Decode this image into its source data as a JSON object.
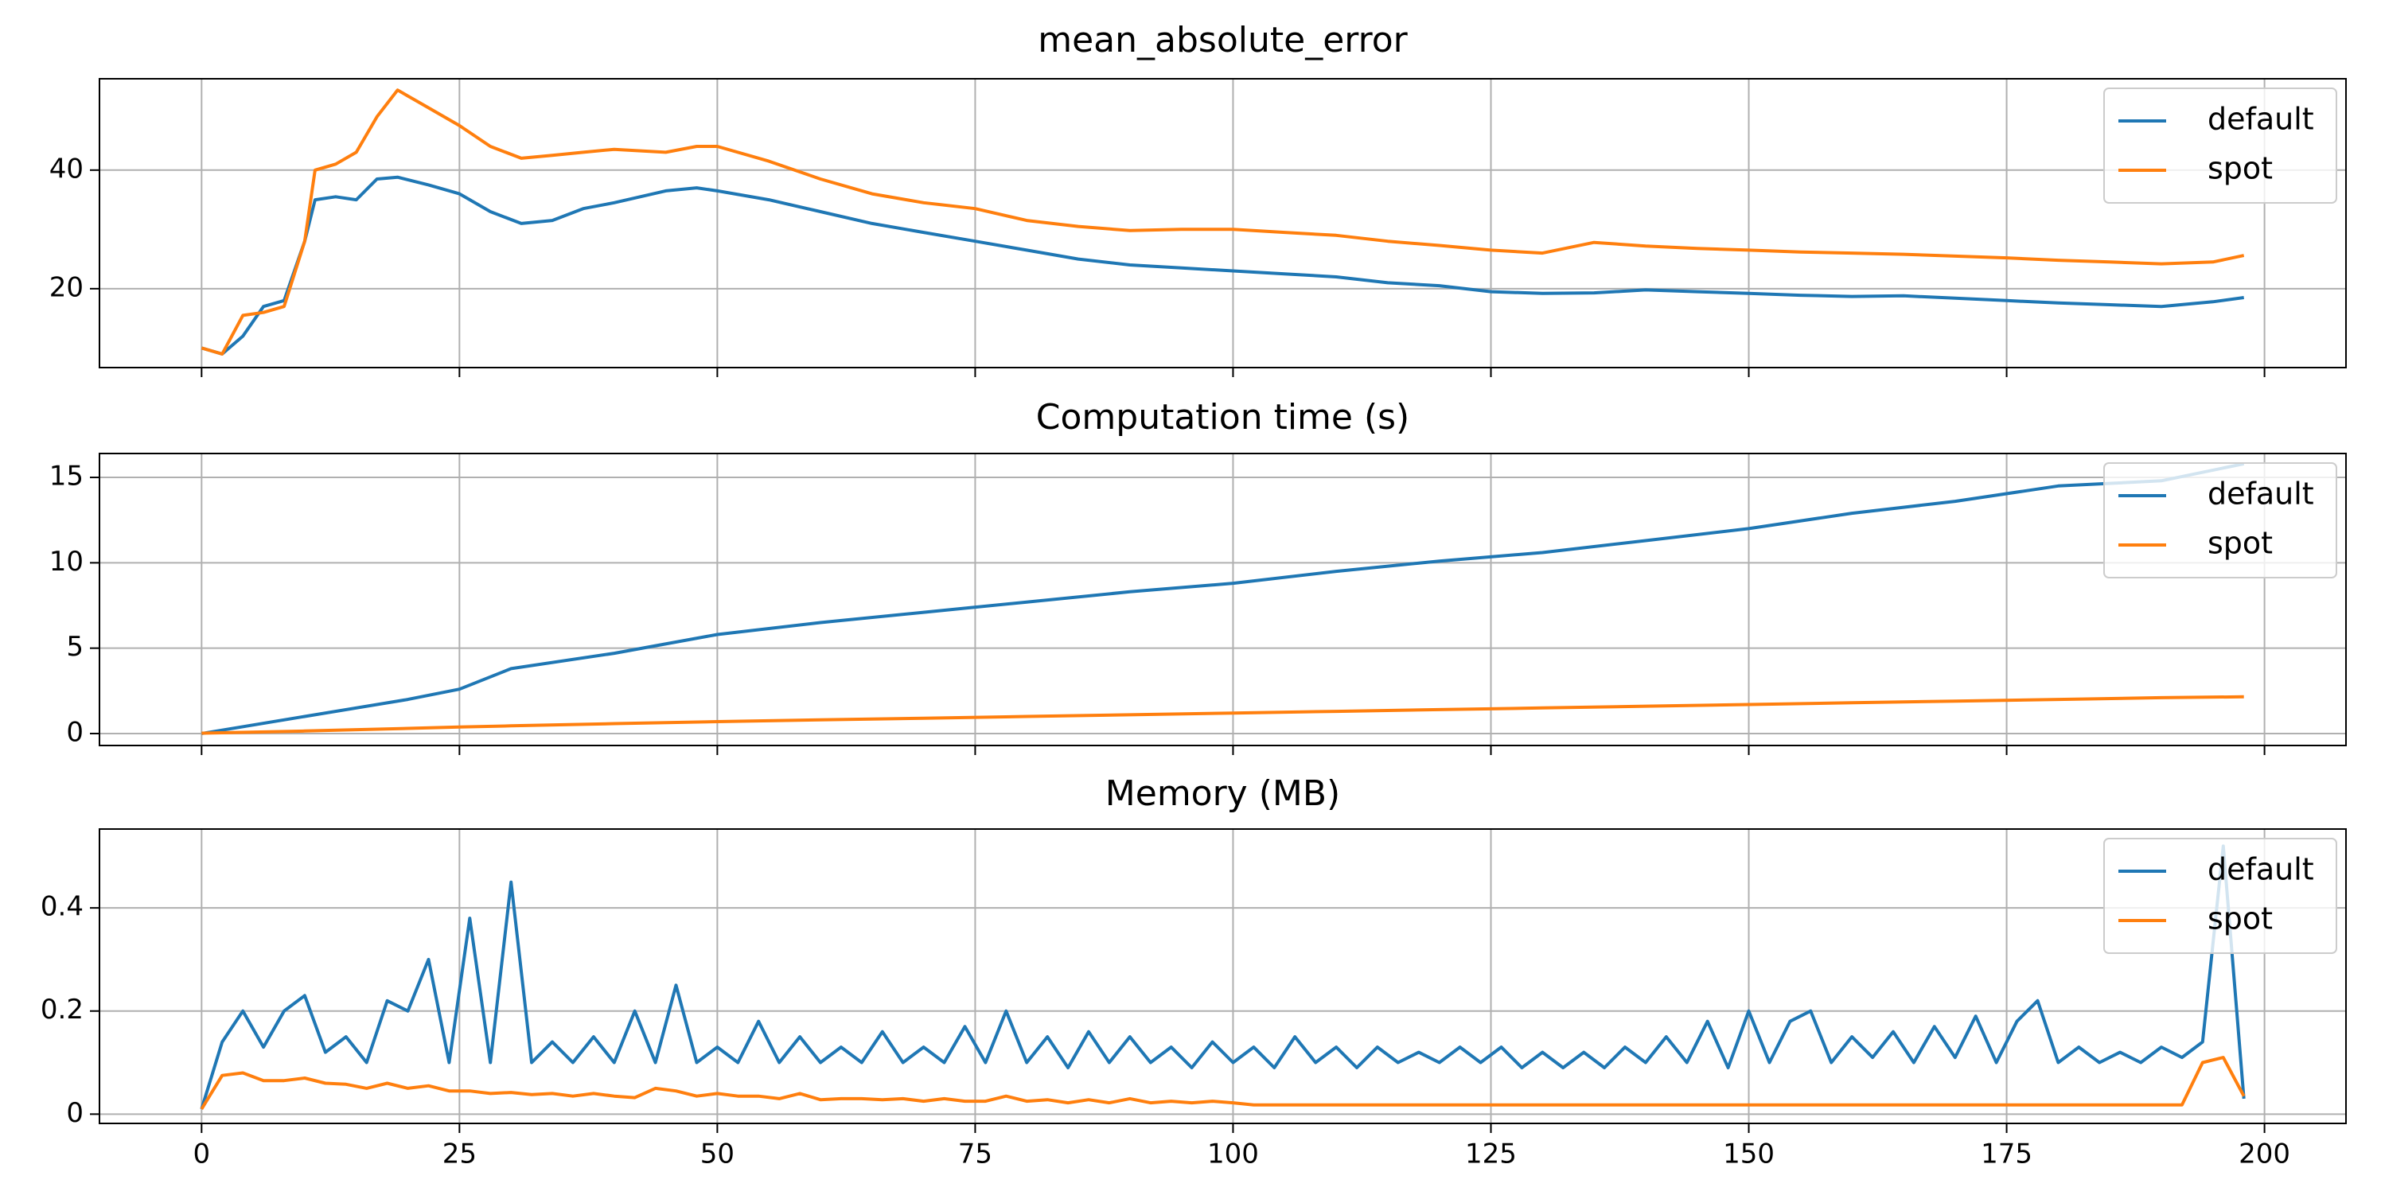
{
  "chart_data": [
    {
      "type": "line",
      "title": "mean_absolute_error",
      "legend": "upper right",
      "grid": true,
      "x": [
        0,
        2,
        4,
        6,
        8,
        10,
        11,
        13,
        15,
        17,
        19,
        22,
        25,
        28,
        31,
        34,
        37,
        40,
        45,
        48,
        50,
        55,
        60,
        65,
        70,
        75,
        80,
        85,
        90,
        95,
        100,
        105,
        110,
        115,
        120,
        125,
        130,
        135,
        140,
        145,
        150,
        155,
        160,
        165,
        170,
        175,
        180,
        185,
        190,
        195,
        198
      ],
      "series": [
        {
          "name": "default",
          "color": "#1f77b4",
          "values": [
            10,
            9,
            12,
            17,
            18,
            28,
            35,
            35.5,
            35,
            38.5,
            38.8,
            37.5,
            36,
            33,
            31,
            31.5,
            33.5,
            34.5,
            36.5,
            37,
            36.5,
            35,
            33,
            31,
            29.5,
            28,
            26.5,
            25,
            24,
            23.5,
            23,
            22.5,
            22,
            21,
            20.5,
            19.5,
            19.2,
            19.3,
            19.8,
            19.5,
            19.2,
            18.9,
            18.7,
            18.8,
            18.4,
            18,
            17.6,
            17.3,
            17,
            17.8,
            18.5
          ]
        },
        {
          "name": "spot",
          "color": "#ff7f0e",
          "values": [
            10,
            9,
            15.5,
            16,
            17,
            28,
            40,
            41,
            43,
            49,
            53.5,
            50.5,
            47.5,
            44,
            42,
            42.5,
            43,
            43.5,
            43,
            44,
            44,
            41.5,
            38.5,
            36,
            34.5,
            33.5,
            31.5,
            30.5,
            29.8,
            30,
            30,
            29.5,
            29,
            28,
            27.3,
            26.5,
            26,
            27.8,
            27.2,
            26.8,
            26.5,
            26.2,
            26,
            25.8,
            25.5,
            25.2,
            24.8,
            24.5,
            24.2,
            24.5,
            25.6
          ]
        }
      ],
      "xlim": [
        -9.9,
        207.9
      ],
      "xticks": [
        0,
        25,
        50,
        75,
        100,
        125,
        150,
        175,
        200
      ],
      "ylim": [
        6.7,
        55.4
      ],
      "yticks": [
        20,
        40
      ]
    },
    {
      "type": "line",
      "title": "Computation time (s)",
      "legend": "upper right",
      "grid": true,
      "x": [
        0,
        10,
        20,
        25,
        30,
        40,
        50,
        60,
        70,
        80,
        90,
        100,
        110,
        120,
        130,
        140,
        150,
        160,
        170,
        180,
        190,
        198
      ],
      "series": [
        {
          "name": "default",
          "color": "#1f77b4",
          "values": [
            0,
            1,
            2,
            2.6,
            3.8,
            4.7,
            5.8,
            6.5,
            7.1,
            7.7,
            8.3,
            8.8,
            9.5,
            10.1,
            10.6,
            11.3,
            12,
            12.9,
            13.6,
            14.5,
            14.8,
            15.8
          ]
        },
        {
          "name": "spot",
          "color": "#ff7f0e",
          "values": [
            0.02,
            0.15,
            0.3,
            0.38,
            0.45,
            0.58,
            0.7,
            0.8,
            0.9,
            1.0,
            1.1,
            1.2,
            1.3,
            1.4,
            1.5,
            1.6,
            1.7,
            1.8,
            1.9,
            2.0,
            2.1,
            2.15
          ]
        }
      ],
      "xlim": [
        -9.9,
        207.9
      ],
      "xticks": [
        0,
        25,
        50,
        75,
        100,
        125,
        150,
        175,
        200
      ],
      "ylim": [
        -0.7,
        16.4
      ],
      "yticks": [
        0,
        5,
        10,
        15
      ]
    },
    {
      "type": "line",
      "title": "Memory (MB)",
      "legend": "upper right",
      "grid": true,
      "x": [
        0,
        2,
        4,
        6,
        8,
        10,
        12,
        14,
        16,
        18,
        20,
        22,
        24,
        26,
        28,
        30,
        32,
        34,
        36,
        38,
        40,
        42,
        44,
        46,
        48,
        50,
        52,
        54,
        56,
        58,
        60,
        62,
        64,
        66,
        68,
        70,
        72,
        74,
        76,
        78,
        80,
        82,
        84,
        86,
        88,
        90,
        92,
        94,
        96,
        98,
        100,
        102,
        104,
        106,
        108,
        110,
        112,
        114,
        116,
        118,
        120,
        122,
        124,
        126,
        128,
        130,
        132,
        134,
        136,
        138,
        140,
        142,
        144,
        146,
        148,
        150,
        152,
        154,
        156,
        158,
        160,
        162,
        164,
        166,
        168,
        170,
        172,
        174,
        176,
        178,
        180,
        182,
        184,
        186,
        188,
        190,
        192,
        194,
        196,
        198
      ],
      "series": [
        {
          "name": "default",
          "color": "#1f77b4",
          "values": [
            0.01,
            0.14,
            0.2,
            0.13,
            0.2,
            0.23,
            0.12,
            0.15,
            0.1,
            0.22,
            0.2,
            0.3,
            0.1,
            0.38,
            0.1,
            0.45,
            0.1,
            0.14,
            0.1,
            0.15,
            0.1,
            0.2,
            0.1,
            0.25,
            0.1,
            0.13,
            0.1,
            0.18,
            0.1,
            0.15,
            0.1,
            0.13,
            0.1,
            0.16,
            0.1,
            0.13,
            0.1,
            0.17,
            0.1,
            0.2,
            0.1,
            0.15,
            0.09,
            0.16,
            0.1,
            0.15,
            0.1,
            0.13,
            0.09,
            0.14,
            0.1,
            0.13,
            0.09,
            0.15,
            0.1,
            0.13,
            0.09,
            0.13,
            0.1,
            0.12,
            0.1,
            0.13,
            0.1,
            0.13,
            0.09,
            0.12,
            0.09,
            0.12,
            0.09,
            0.13,
            0.1,
            0.15,
            0.1,
            0.18,
            0.09,
            0.2,
            0.1,
            0.18,
            0.2,
            0.1,
            0.15,
            0.11,
            0.16,
            0.1,
            0.17,
            0.11,
            0.19,
            0.1,
            0.18,
            0.22,
            0.1,
            0.13,
            0.1,
            0.12,
            0.1,
            0.13,
            0.11,
            0.14,
            0.52,
            0.03
          ]
        },
        {
          "name": "spot",
          "color": "#ff7f0e",
          "values": [
            0.01,
            0.075,
            0.08,
            0.065,
            0.065,
            0.07,
            0.06,
            0.058,
            0.05,
            0.06,
            0.05,
            0.055,
            0.045,
            0.045,
            0.04,
            0.042,
            0.038,
            0.04,
            0.035,
            0.04,
            0.035,
            0.032,
            0.05,
            0.045,
            0.035,
            0.04,
            0.035,
            0.035,
            0.03,
            0.04,
            0.028,
            0.03,
            0.03,
            0.028,
            0.03,
            0.025,
            0.03,
            0.025,
            0.025,
            0.035,
            0.025,
            0.028,
            0.022,
            0.028,
            0.022,
            0.03,
            0.022,
            0.025,
            0.022,
            0.025,
            0.022,
            0.018,
            0.018,
            0.018,
            0.018,
            0.018,
            0.018,
            0.018,
            0.018,
            0.018,
            0.018,
            0.018,
            0.018,
            0.018,
            0.018,
            0.018,
            0.018,
            0.018,
            0.018,
            0.018,
            0.018,
            0.018,
            0.018,
            0.018,
            0.018,
            0.018,
            0.018,
            0.018,
            0.018,
            0.018,
            0.018,
            0.018,
            0.018,
            0.018,
            0.018,
            0.018,
            0.018,
            0.018,
            0.018,
            0.018,
            0.018,
            0.018,
            0.018,
            0.018,
            0.018,
            0.018,
            0.018,
            0.1,
            0.11,
            0.035
          ]
        }
      ],
      "xlim": [
        -9.9,
        207.9
      ],
      "xticks": [
        0,
        25,
        50,
        75,
        100,
        125,
        150,
        175,
        200
      ],
      "ylim": [
        -0.018,
        0.553
      ],
      "yticks": [
        0.0,
        0.2,
        0.4
      ]
    }
  ]
}
